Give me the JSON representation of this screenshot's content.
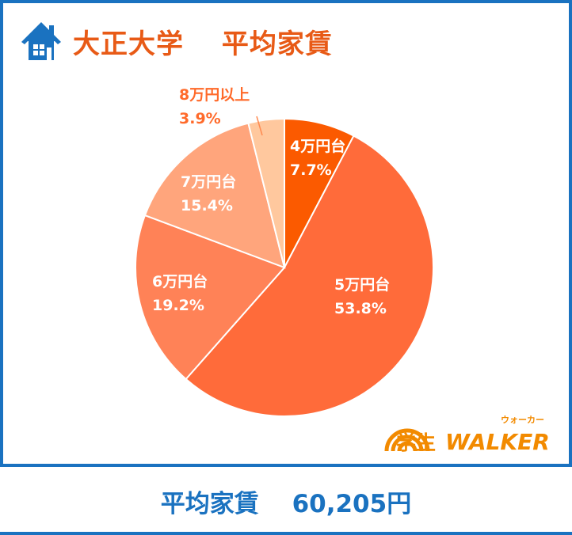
{
  "header": {
    "title": "大正大学　 平均家賃",
    "icon": "house-icon"
  },
  "chart_data": {
    "type": "pie",
    "categories": [
      "4万円台",
      "5万円台",
      "6万円台",
      "7万円台",
      "8万円以上"
    ],
    "values": [
      7.7,
      53.8,
      19.2,
      15.4,
      3.9
    ],
    "value_labels": [
      "7.7%",
      "53.8%",
      "19.2%",
      "15.4%",
      "3.9%"
    ],
    "colors": [
      "#fb5a00",
      "#ff6b3a",
      "#ff8257",
      "#ffa57c",
      "#ffc89e"
    ],
    "label_colors": [
      "#ffffff",
      "#ffffff",
      "#ffffff",
      "#ffffff",
      "#ff6a2a"
    ],
    "start_angle_deg": 0,
    "direction": "clockwise"
  },
  "logo": {
    "text_main": "学生WALKER",
    "text_kana": "ウォーカー",
    "color": "#f28a00"
  },
  "footer": {
    "text": "平均家賃　 60,205円"
  },
  "colors": {
    "frame": "#1a72c0",
    "title": "#e85a16"
  }
}
